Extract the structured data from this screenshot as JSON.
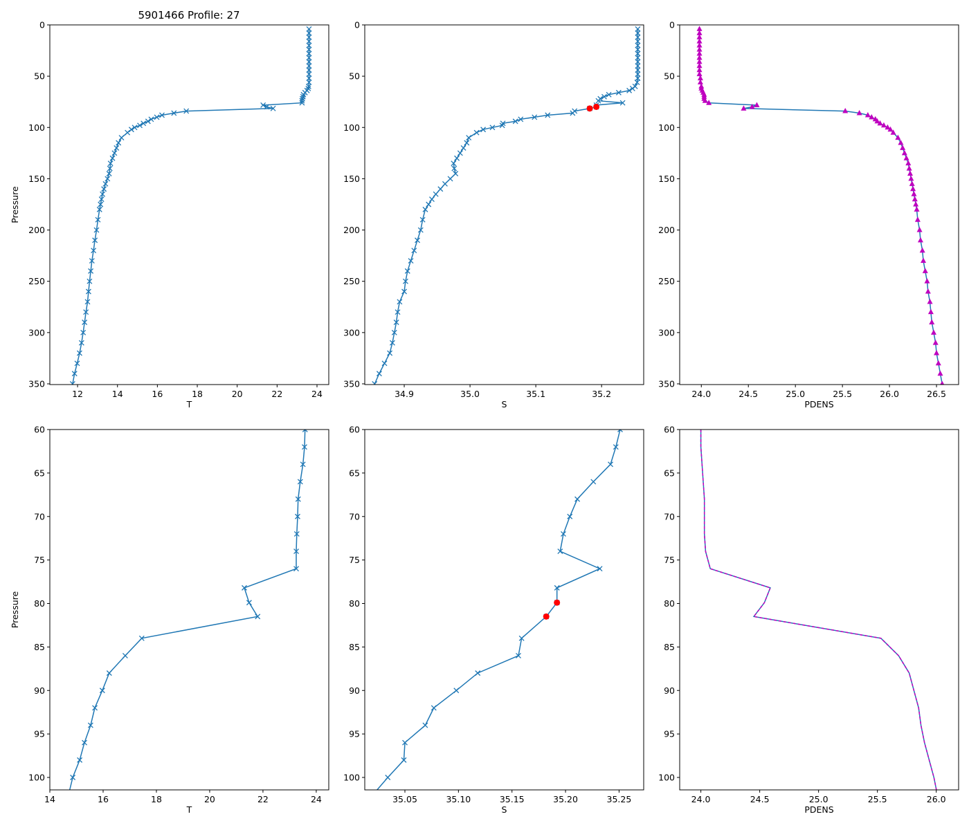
{
  "chart_data": {
    "type": "line",
    "title": "5901466 Profile: 27",
    "pressure": [
      4,
      8,
      12,
      16,
      20,
      24,
      28,
      32,
      36,
      40,
      44,
      48,
      52,
      56,
      60,
      62,
      64,
      66,
      68,
      70,
      72,
      74,
      76,
      78.2,
      79.9,
      81.5,
      84,
      86,
      88,
      90,
      92,
      94,
      96,
      98,
      100,
      102,
      105,
      110,
      115,
      120,
      125,
      130,
      135,
      140,
      145,
      150,
      155,
      160,
      165,
      170,
      175,
      180,
      190,
      200,
      210,
      220,
      230,
      240,
      250,
      260,
      270,
      280,
      290,
      300,
      310,
      320,
      330,
      340,
      350
    ],
    "T": [
      23.6,
      23.6,
      23.6,
      23.6,
      23.6,
      23.6,
      23.6,
      23.6,
      23.6,
      23.6,
      23.6,
      23.6,
      23.6,
      23.6,
      23.58,
      23.56,
      23.5,
      23.4,
      23.32,
      23.3,
      23.27,
      23.25,
      23.25,
      21.3,
      21.48,
      21.8,
      17.45,
      16.83,
      16.23,
      15.97,
      15.69,
      15.53,
      15.3,
      15.12,
      14.86,
      14.7,
      14.5,
      14.2,
      14.05,
      13.95,
      13.85,
      13.75,
      13.65,
      13.62,
      13.58,
      13.5,
      13.4,
      13.32,
      13.25,
      13.2,
      13.15,
      13.1,
      13.02,
      12.95,
      12.87,
      12.8,
      12.72,
      12.66,
      12.6,
      12.55,
      12.5,
      12.42,
      12.35,
      12.28,
      12.2,
      12.1,
      11.98,
      11.85,
      11.75
    ],
    "S": [
      35.255,
      35.255,
      35.255,
      35.255,
      35.255,
      35.255,
      35.255,
      35.255,
      35.255,
      35.255,
      35.255,
      35.255,
      35.255,
      35.254,
      35.251,
      35.247,
      35.242,
      35.226,
      35.211,
      35.204,
      35.198,
      35.195,
      35.232,
      35.192,
      35.192,
      35.182,
      35.159,
      35.156,
      35.118,
      35.098,
      35.077,
      35.069,
      35.05,
      35.049,
      35.034,
      35.02,
      35.01,
      34.998,
      34.995,
      34.99,
      34.985,
      34.98,
      34.975,
      34.976,
      34.978,
      34.97,
      34.962,
      34.955,
      34.948,
      34.942,
      34.937,
      34.932,
      34.928,
      34.925,
      34.92,
      34.915,
      34.91,
      34.905,
      34.902,
      34.9,
      34.893,
      34.89,
      34.888,
      34.885,
      34.882,
      34.878,
      34.87,
      34.862,
      34.855
    ],
    "PDENS": [
      23.98,
      23.98,
      23.98,
      23.98,
      23.98,
      23.98,
      23.98,
      23.98,
      23.98,
      23.98,
      23.98,
      23.98,
      23.99,
      23.99,
      24.0,
      24.0,
      24.01,
      24.02,
      24.03,
      24.03,
      24.03,
      24.04,
      24.08,
      24.59,
      24.54,
      24.45,
      25.53,
      25.68,
      25.77,
      25.81,
      25.85,
      25.87,
      25.9,
      25.94,
      25.98,
      26.01,
      26.04,
      26.09,
      26.12,
      26.14,
      26.16,
      26.18,
      26.2,
      26.21,
      26.22,
      26.23,
      26.24,
      26.25,
      26.26,
      26.27,
      26.28,
      26.29,
      26.3,
      26.32,
      26.33,
      26.35,
      26.36,
      26.38,
      26.4,
      26.41,
      26.43,
      26.44,
      26.45,
      26.47,
      26.49,
      26.5,
      26.52,
      26.54,
      26.56
    ],
    "flagged_S_pressures": [
      79.9,
      81.5
    ],
    "colors": {
      "line": "#1f77b4",
      "density_marker": "#bf00bf",
      "flag": "#ff0000"
    },
    "panels": [
      {
        "var": "T",
        "xlabel": "T",
        "ylabel": "Pressure",
        "xlim": [
          10.61,
          24.59
        ],
        "ylim": [
          350.7,
          0
        ],
        "xticks": [
          "12",
          "14",
          "16",
          "18",
          "20",
          "22",
          "24"
        ],
        "yticks": [
          "0",
          "50",
          "100",
          "150",
          "200",
          "250",
          "300",
          "350"
        ],
        "style": "x"
      },
      {
        "var": "S",
        "xlabel": "S",
        "ylabel": "",
        "xlim": [
          34.84,
          35.264
        ],
        "ylim": [
          350.7,
          0
        ],
        "xticks": [
          "34.9",
          "35.0",
          "35.1",
          "35.2"
        ],
        "yticks": [
          "0",
          "50",
          "100",
          "150",
          "200",
          "250",
          "300",
          "350"
        ],
        "style": "x"
      },
      {
        "var": "PDENS",
        "xlabel": "PDENS",
        "ylabel": "",
        "xlim": [
          23.77,
          26.735
        ],
        "ylim": [
          350.7,
          0
        ],
        "xticks": [
          "24.0",
          "24.5",
          "25.0",
          "25.5",
          "26.0",
          "26.5"
        ],
        "yticks": [
          "0",
          "50",
          "100",
          "150",
          "200",
          "250",
          "300",
          "350"
        ],
        "style": "tri"
      },
      {
        "var": "T",
        "xlabel": "T",
        "ylabel": "Pressure",
        "xlim": [
          14.0,
          24.47
        ],
        "ylim": [
          101.43,
          60
        ],
        "xticks": [
          "14",
          "16",
          "18",
          "20",
          "22",
          "24"
        ],
        "yticks": [
          "60",
          "65",
          "70",
          "75",
          "80",
          "85",
          "90",
          "95",
          "100"
        ],
        "style": "x"
      },
      {
        "var": "S",
        "xlabel": "S",
        "ylabel": "",
        "xlim": [
          35.0125,
          35.273
        ],
        "ylim": [
          101.43,
          60
        ],
        "xticks": [
          "35.05",
          "35.10",
          "35.15",
          "35.20",
          "35.25"
        ],
        "yticks": [
          "60",
          "65",
          "70",
          "75",
          "80",
          "85",
          "90",
          "95",
          "100"
        ],
        "style": "x"
      },
      {
        "var": "PDENS",
        "xlabel": "PDENS",
        "ylabel": "",
        "xlim": [
          23.82,
          26.19
        ],
        "ylim": [
          101.43,
          60
        ],
        "xticks": [
          "24.0",
          "24.5",
          "25.0",
          "25.5",
          "26.0"
        ],
        "yticks": [
          "60",
          "65",
          "70",
          "75",
          "80",
          "85",
          "90",
          "95",
          "100"
        ],
        "style": "dash"
      }
    ]
  }
}
